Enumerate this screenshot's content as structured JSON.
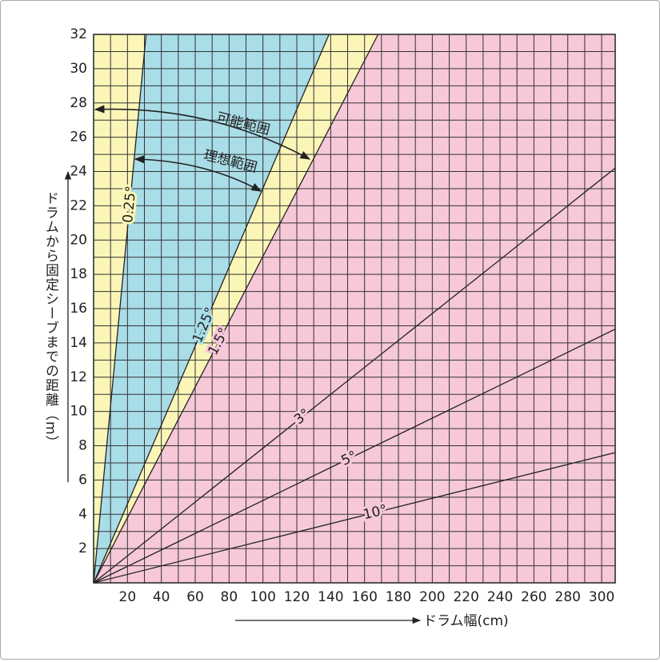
{
  "chart_data": {
    "type": "line",
    "x_label": "ドラム幅(cm)",
    "y_label": "ドラムから固定シーブまでの距離（m）",
    "annotations": [
      "可能範囲",
      "理想範囲"
    ],
    "xlim": [
      0,
      308
    ],
    "ylim": [
      0,
      32
    ],
    "xticks": [
      20,
      40,
      60,
      80,
      100,
      120,
      140,
      160,
      180,
      200,
      220,
      240,
      260,
      280,
      300
    ],
    "yticks": [
      2,
      4,
      6,
      8,
      10,
      12,
      14,
      16,
      18,
      20,
      22,
      24,
      26,
      28,
      30,
      32
    ],
    "xgrid": [
      10,
      20,
      30,
      40,
      50,
      60,
      70,
      80,
      90,
      100,
      110,
      120,
      130,
      140,
      150,
      160,
      170,
      180,
      190,
      200,
      210,
      220,
      230,
      240,
      250,
      260,
      270,
      280,
      290,
      300
    ],
    "ygrid": [
      1,
      2,
      3,
      4,
      5,
      6,
      7,
      8,
      9,
      10,
      11,
      12,
      13,
      14,
      15,
      16,
      17,
      18,
      19,
      20,
      21,
      22,
      23,
      24,
      25,
      26,
      27,
      28,
      29,
      30,
      31
    ],
    "region_colors": [
      "#fbf5b8",
      "#a9dde8",
      "#fbf5b8",
      "#f6c8d8"
    ],
    "line_color": "#222222",
    "series": [
      {
        "name": "0.25°",
        "x": [
          0,
          31
        ],
        "values": [
          0,
          32
        ]
      },
      {
        "name": "1.25°",
        "x": [
          0,
          139
        ],
        "values": [
          0,
          32
        ]
      },
      {
        "name": "1.5°",
        "x": [
          0,
          168
        ],
        "values": [
          0,
          32
        ]
      },
      {
        "name": "3°",
        "x": [
          0,
          308
        ],
        "values": [
          0,
          24.2
        ]
      },
      {
        "name": "5°",
        "x": [
          0,
          308
        ],
        "values": [
          0,
          14.8
        ]
      },
      {
        "name": "10°",
        "x": [
          0,
          308
        ],
        "values": [
          0,
          7.6
        ]
      }
    ]
  }
}
